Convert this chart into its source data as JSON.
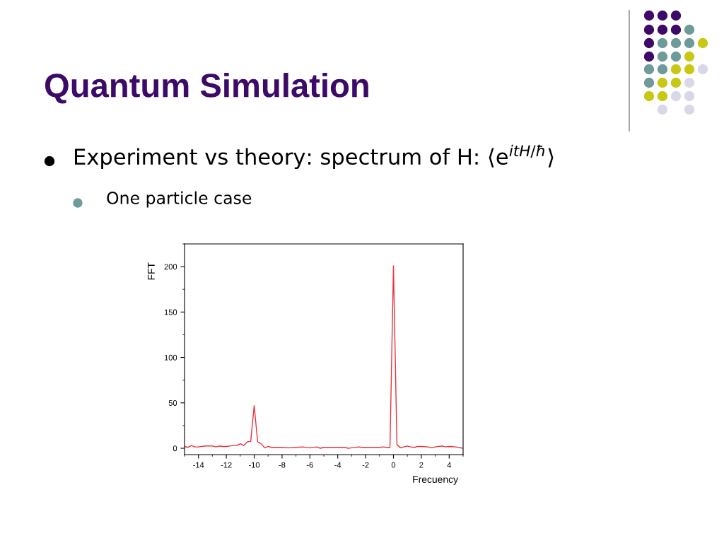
{
  "chart_data": {
    "type": "line",
    "title": "Quantum Simulation",
    "annotations": [
      "Experiment vs theory: spectrum of H: ⟨e$^{itH/ħ}$⟩",
      "One particle case"
    ],
    "xlabel": "Frecuency",
    "ylabel": "FFT",
    "x": [
      -15,
      -14.75,
      -14.5,
      -14.25,
      -14,
      -13.5,
      -13,
      -12.75,
      -12.5,
      -12.25,
      -12,
      -11.5,
      -11.25,
      -11,
      -10.75,
      -10.5,
      -10.25,
      -10,
      -9.75,
      -9.5,
      -9.25,
      -9,
      -8.75,
      -8,
      -7.5,
      -7,
      -6.5,
      -6,
      -5.5,
      -5.25,
      -5,
      -4,
      -3.5,
      -3.25,
      -3,
      -2.5,
      -2.25,
      -2,
      -1,
      -0.75,
      -0.5,
      -0.25,
      0,
      0.25,
      0.5,
      1,
      1.25,
      1.5,
      1.75,
      2,
      2.5,
      2.75,
      3,
      3.5,
      3.75,
      4,
      4.5,
      5
    ],
    "series": [
      {
        "color": "#e8343c",
        "values": [
          2,
          1,
          3,
          1.5,
          1.5,
          2.5,
          2.5,
          1.5,
          2.5,
          2,
          2,
          3,
          3,
          5,
          3,
          7,
          7.5,
          47,
          7,
          5,
          0.5,
          2,
          1,
          1,
          0.5,
          1,
          1.5,
          0.5,
          1.5,
          0,
          1,
          1,
          1,
          0,
          0.5,
          1.5,
          1,
          1,
          1,
          1.5,
          1,
          1,
          201,
          4,
          0.5,
          2.5,
          1.5,
          1,
          2,
          2,
          1.5,
          0.5,
          1.5,
          2.5,
          1.5,
          2,
          1.5,
          0
        ]
      }
    ],
    "xlim": [
      -15,
      5
    ],
    "xticks": [
      -14,
      -12,
      -10,
      -8,
      -6,
      -4,
      -2,
      0,
      2,
      4
    ],
    "ylim": [
      -7,
      225
    ],
    "yticks": [
      0,
      50,
      100,
      150,
      200
    ],
    "grid": false,
    "legend": false,
    "marker": "none",
    "line_style": "solid"
  }
}
